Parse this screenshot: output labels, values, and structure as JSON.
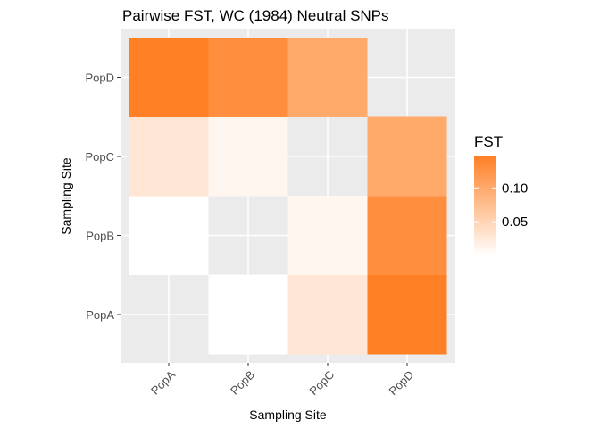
{
  "chart_data": {
    "type": "heatmap",
    "title": "Pairwise FST, WC (1984) Neutral SNPs",
    "xlabel": "Sampling Site",
    "ylabel": "Sampling Site",
    "x_categories": [
      "PopA",
      "PopB",
      "PopC",
      "PopD"
    ],
    "y_categories": [
      "PopA",
      "PopB",
      "PopC",
      "PopD"
    ],
    "cells": [
      {
        "x": "PopB",
        "y": "PopA",
        "value": 0.0
      },
      {
        "x": "PopC",
        "y": "PopA",
        "value": 0.03
      },
      {
        "x": "PopD",
        "y": "PopA",
        "value": 0.148
      },
      {
        "x": "PopA",
        "y": "PopB",
        "value": 0.0
      },
      {
        "x": "PopC",
        "y": "PopB",
        "value": 0.01
      },
      {
        "x": "PopD",
        "y": "PopB",
        "value": 0.13
      },
      {
        "x": "PopA",
        "y": "PopC",
        "value": 0.03
      },
      {
        "x": "PopB",
        "y": "PopC",
        "value": 0.01
      },
      {
        "x": "PopD",
        "y": "PopC",
        "value": 0.1
      },
      {
        "x": "PopA",
        "y": "PopD",
        "value": 0.148
      },
      {
        "x": "PopB",
        "y": "PopD",
        "value": 0.13
      },
      {
        "x": "PopC",
        "y": "PopD",
        "value": 0.1
      }
    ],
    "legend": {
      "title": "FST",
      "ticks": [
        0.05,
        0.1
      ],
      "tick_labels": [
        "0.05",
        "0.10"
      ],
      "range": [
        0.0,
        0.148
      ],
      "low_color": "#ffffff",
      "high_color": "#ff7f24",
      "placement": "right"
    },
    "panel_background": "#ebebeb",
    "grid": true
  }
}
